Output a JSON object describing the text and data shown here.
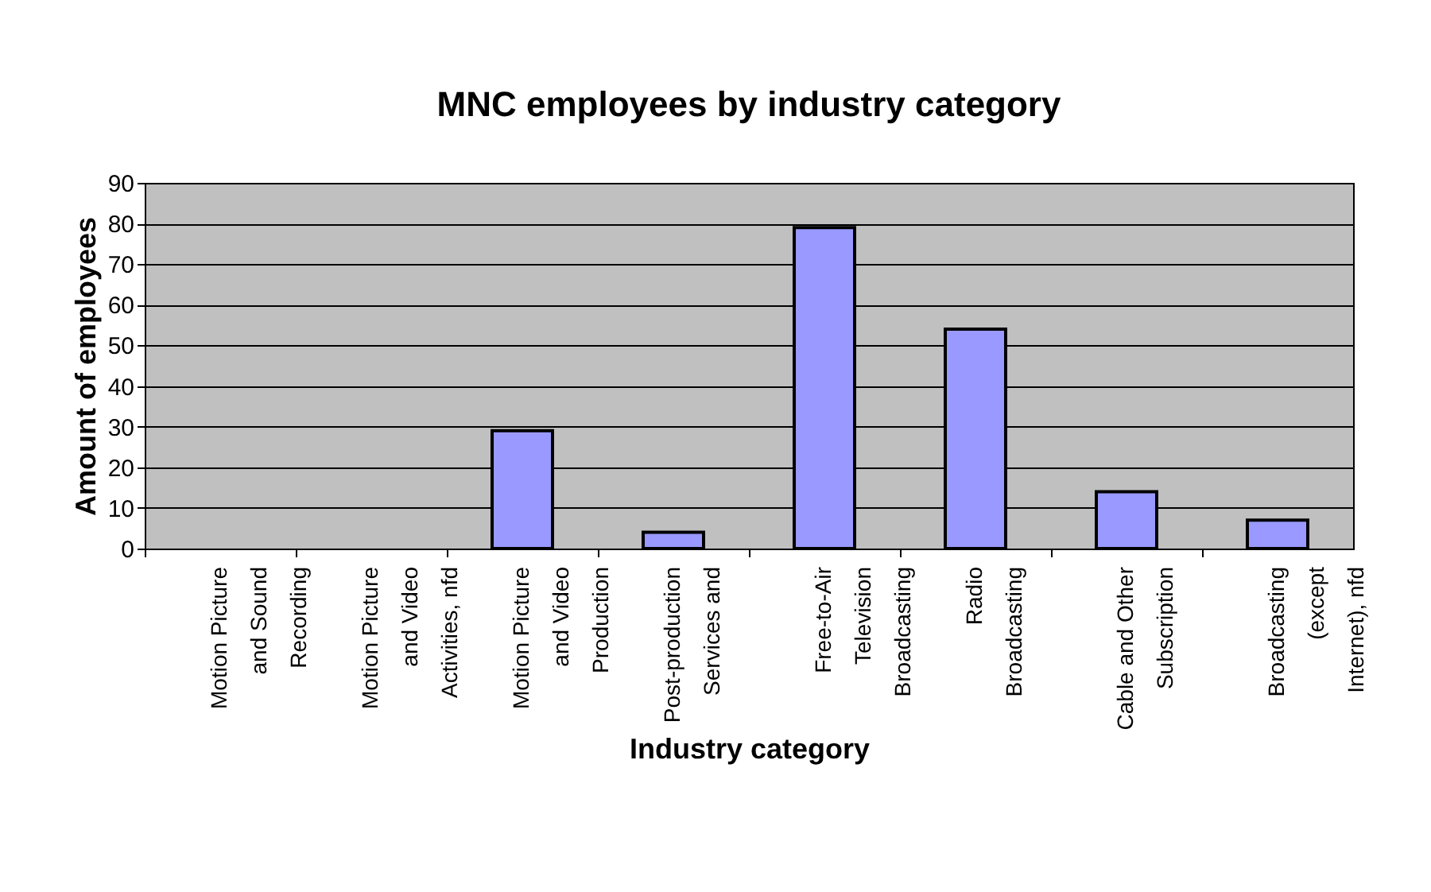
{
  "chart_data": {
    "type": "bar",
    "title": "MNC employees by industry category",
    "xlabel": "Industry category",
    "ylabel": "Amount of employees",
    "categories": [
      "Motion Picture and Sound Recording",
      "Motion Picture and Video Activities, nfd",
      "Motion Picture and Video Production",
      "Post-production Services and",
      "Free-to-Air Television Broadcasting",
      "Radio Broadcasting",
      "Cable and Other Subscription",
      "Broadcasting (except Internet), nfd"
    ],
    "values": [
      0,
      0,
      29,
      4,
      79,
      54,
      14,
      7
    ],
    "color": "#9999ff",
    "ylim": [
      0,
      90
    ],
    "yticks": [
      0,
      10,
      20,
      30,
      40,
      50,
      60,
      70,
      80,
      90
    ],
    "grid": "y"
  }
}
